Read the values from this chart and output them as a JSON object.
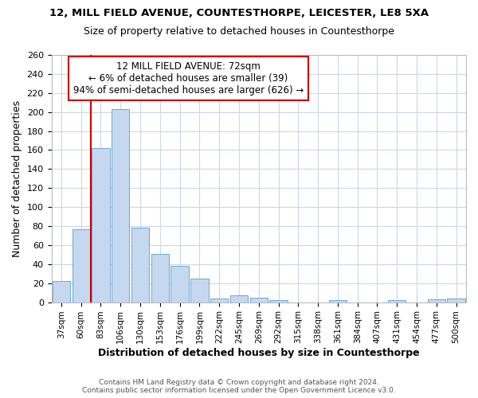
{
  "title1": "12, MILL FIELD AVENUE, COUNTESTHORPE, LEICESTER, LE8 5XA",
  "title2": "Size of property relative to detached houses in Countesthorpe",
  "xlabel": "Distribution of detached houses by size in Countesthorpe",
  "ylabel": "Number of detached properties",
  "footer1": "Contains HM Land Registry data © Crown copyright and database right 2024.",
  "footer2": "Contains public sector information licensed under the Open Government Licence v3.0.",
  "categories": [
    "37sqm",
    "60sqm",
    "83sqm",
    "106sqm",
    "130sqm",
    "153sqm",
    "176sqm",
    "199sqm",
    "222sqm",
    "245sqm",
    "269sqm",
    "292sqm",
    "315sqm",
    "338sqm",
    "361sqm",
    "384sqm",
    "407sqm",
    "431sqm",
    "454sqm",
    "477sqm",
    "500sqm"
  ],
  "values": [
    22,
    77,
    162,
    203,
    78,
    51,
    38,
    25,
    4,
    7,
    5,
    2,
    0,
    0,
    2,
    0,
    0,
    2,
    0,
    3,
    4
  ],
  "bar_color": "#c5d8f0",
  "bar_edge_color": "#6aaad4",
  "annotation_text_line1": "12 MILL FIELD AVENUE: 72sqm",
  "annotation_text_line2": "← 6% of detached houses are smaller (39)",
  "annotation_text_line3": "94% of semi-detached houses are larger (626) →",
  "annotation_box_color": "#ffffff",
  "annotation_border_color": "#cc0000",
  "ref_line_color": "#cc0000",
  "grid_color": "#c8d8ec",
  "ylim": [
    0,
    260
  ],
  "yticks": [
    0,
    20,
    40,
    60,
    80,
    100,
    120,
    140,
    160,
    180,
    200,
    220,
    240,
    260
  ],
  "bg_color": "#ffffff",
  "ref_line_bar_index": 1.5
}
